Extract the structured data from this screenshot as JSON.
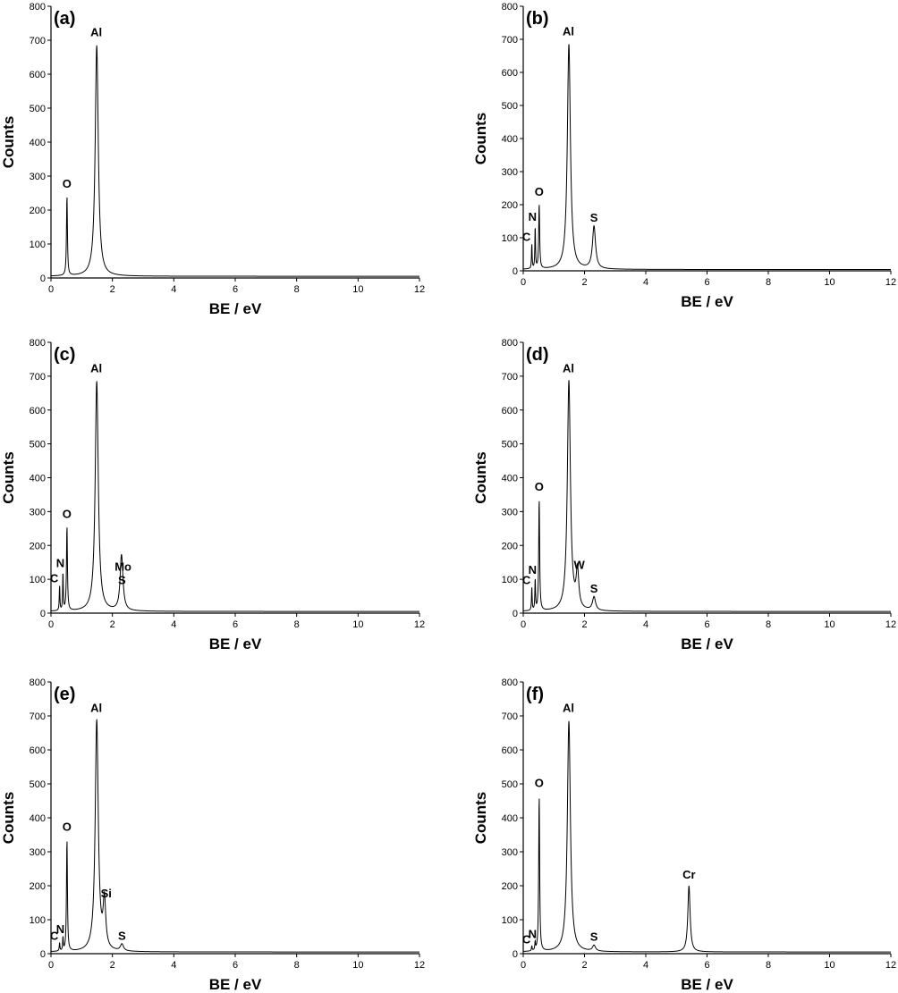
{
  "chart_data": [
    {
      "type": "line",
      "panel_label": "(a)",
      "xlabel": "BE / eV",
      "ylabel": "Counts",
      "xlim": [
        0,
        12
      ],
      "ylim": [
        0,
        800
      ],
      "xticks": [
        "0",
        "2",
        "4",
        "6",
        "8",
        "10",
        "12"
      ],
      "yticks": [
        "0",
        "100",
        "200",
        "300",
        "400",
        "500",
        "600",
        "700",
        "800"
      ],
      "baseline": 5,
      "peaks": [
        {
          "label": "O",
          "x": 0.52,
          "y": 240
        },
        {
          "label": "Al",
          "x": 1.49,
          "y": 685
        }
      ]
    },
    {
      "type": "line",
      "panel_label": "(b)",
      "xlabel": "BE / eV",
      "ylabel": "Counts",
      "xlim": [
        0,
        12
      ],
      "ylim": [
        0,
        800
      ],
      "xticks": [
        "0",
        "2",
        "4",
        "6",
        "8",
        "10",
        "12"
      ],
      "yticks": [
        "0",
        "100",
        "200",
        "300",
        "400",
        "500",
        "600",
        "700",
        "800"
      ],
      "baseline": 4,
      "peaks": [
        {
          "label": "C",
          "x": 0.28,
          "y": 80
        },
        {
          "label": "N",
          "x": 0.39,
          "y": 135
        },
        {
          "label": "O",
          "x": 0.52,
          "y": 200
        },
        {
          "label": "Al",
          "x": 1.49,
          "y": 685
        },
        {
          "label": "S",
          "x": 2.31,
          "y": 133
        }
      ]
    },
    {
      "type": "line",
      "panel_label": "(c)",
      "xlabel": "BE / eV",
      "ylabel": "Counts",
      "xlim": [
        0,
        12
      ],
      "ylim": [
        0,
        800
      ],
      "xticks": [
        "0",
        "2",
        "4",
        "6",
        "8",
        "10",
        "12"
      ],
      "yticks": [
        "0",
        "100",
        "200",
        "300",
        "400",
        "500",
        "600",
        "700",
        "800"
      ],
      "baseline": 5,
      "peaks": [
        {
          "label": "C",
          "x": 0.28,
          "y": 80
        },
        {
          "label": "N",
          "x": 0.39,
          "y": 120
        },
        {
          "label": "O",
          "x": 0.52,
          "y": 255
        },
        {
          "label": "Al",
          "x": 1.49,
          "y": 685
        },
        {
          "label": "Mo",
          "x": 2.29,
          "y": 110
        },
        {
          "label": "S",
          "x": 2.31,
          "y": 70
        }
      ]
    },
    {
      "type": "line",
      "panel_label": "(d)",
      "xlabel": "BE / eV",
      "ylabel": "Counts",
      "xlim": [
        0,
        12
      ],
      "ylim": [
        0,
        800
      ],
      "xticks": [
        "0",
        "2",
        "4",
        "6",
        "8",
        "10",
        "12"
      ],
      "yticks": [
        "0",
        "100",
        "200",
        "300",
        "400",
        "500",
        "600",
        "700",
        "800"
      ],
      "baseline": 5,
      "peaks": [
        {
          "label": "C",
          "x": 0.28,
          "y": 75
        },
        {
          "label": "N",
          "x": 0.39,
          "y": 100
        },
        {
          "label": "O",
          "x": 0.52,
          "y": 335
        },
        {
          "label": "Al",
          "x": 1.49,
          "y": 685
        },
        {
          "label": "W",
          "x": 1.77,
          "y": 115
        },
        {
          "label": "S",
          "x": 2.31,
          "y": 45
        }
      ]
    },
    {
      "type": "line",
      "panel_label": "(e)",
      "xlabel": "BE / eV",
      "ylabel": "Counts",
      "xlim": [
        0,
        12
      ],
      "ylim": [
        0,
        800
      ],
      "xticks": [
        "0",
        "2",
        "4",
        "6",
        "8",
        "10",
        "12"
      ],
      "yticks": [
        "0",
        "100",
        "200",
        "300",
        "400",
        "500",
        "600",
        "700",
        "800"
      ],
      "baseline": 5,
      "peaks": [
        {
          "label": "C",
          "x": 0.28,
          "y": 30
        },
        {
          "label": "N",
          "x": 0.39,
          "y": 45
        },
        {
          "label": "O",
          "x": 0.52,
          "y": 335
        },
        {
          "label": "Al",
          "x": 1.49,
          "y": 685
        },
        {
          "label": "Si",
          "x": 1.74,
          "y": 145
        },
        {
          "label": "S",
          "x": 2.31,
          "y": 25
        }
      ]
    },
    {
      "type": "line",
      "panel_label": "(f)",
      "xlabel": "BE / eV",
      "ylabel": "Counts",
      "xlim": [
        0,
        12
      ],
      "ylim": [
        0,
        800
      ],
      "xticks": [
        "0",
        "2",
        "4",
        "6",
        "8",
        "10",
        "12"
      ],
      "yticks": [
        "0",
        "100",
        "200",
        "300",
        "400",
        "500",
        "600",
        "700",
        "800"
      ],
      "baseline": 5,
      "peaks": [
        {
          "label": "C",
          "x": 0.28,
          "y": 20
        },
        {
          "label": "N",
          "x": 0.39,
          "y": 30
        },
        {
          "label": "O",
          "x": 0.52,
          "y": 465
        },
        {
          "label": "Al",
          "x": 1.49,
          "y": 685
        },
        {
          "label": "S",
          "x": 2.31,
          "y": 22
        },
        {
          "label": "Cr",
          "x": 5.41,
          "y": 200
        }
      ]
    }
  ]
}
